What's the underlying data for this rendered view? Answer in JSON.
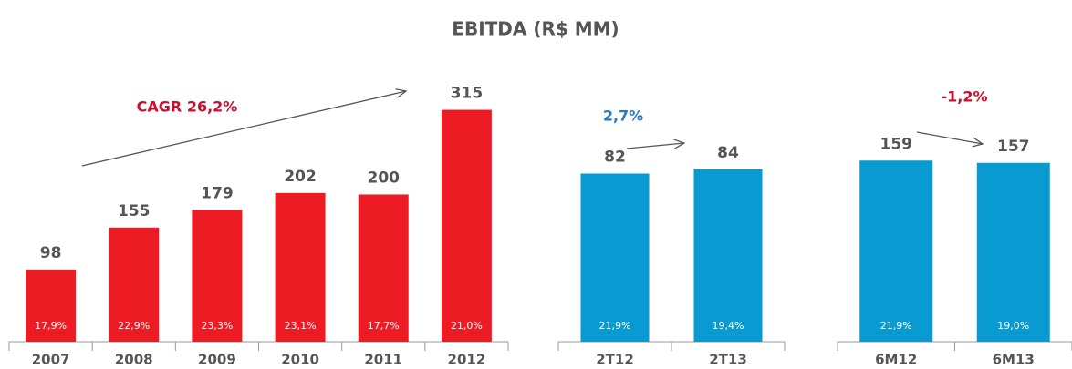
{
  "title": "EBITDA (R$ MM)",
  "chart_data": [
    {
      "type": "bar",
      "categories": [
        "2007",
        "2008",
        "2009",
        "2010",
        "2011",
        "2012"
      ],
      "values": [
        98,
        155,
        179,
        202,
        200,
        315
      ],
      "inner_labels": [
        "17,9%",
        "22,9%",
        "23,3%",
        "23,1%",
        "17,7%",
        "21,0%"
      ],
      "annotation": "CAGR 26,2%",
      "annotation_color": "#c8102e",
      "color": "#ed1c24",
      "ylim": [
        0,
        390
      ]
    },
    {
      "type": "bar",
      "categories": [
        "2T12",
        "2T13"
      ],
      "values": [
        82,
        84
      ],
      "inner_labels": [
        "21,9%",
        "19,4%"
      ],
      "annotation": "2,7%",
      "annotation_color": "#2a7ac0",
      "color": "#0a9ad2",
      "ylim": [
        0,
        140
      ]
    },
    {
      "type": "bar",
      "categories": [
        "6M12",
        "6M13"
      ],
      "values": [
        159,
        157
      ],
      "inner_labels": [
        "21,9%",
        "19,0%"
      ],
      "annotation": "-1,2%",
      "annotation_color": "#c8102e",
      "color": "#0a9ad2",
      "ylim": [
        0,
        252
      ]
    }
  ]
}
